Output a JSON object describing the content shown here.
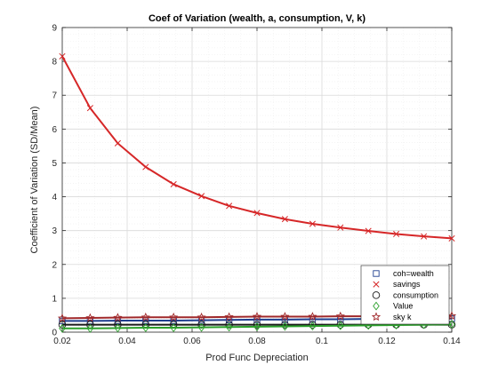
{
  "chart_data": {
    "type": "line",
    "title": "Coef of Variation (wealth, a, consumption, V, k)",
    "xlabel": "Prod Func Depreciation",
    "ylabel": "Coefficient of Variation (SD/Mean)",
    "xlim": [
      0.02,
      0.14
    ],
    "ylim": [
      0,
      9
    ],
    "xticks": [
      0.02,
      0.04,
      0.06,
      0.08,
      0.1,
      0.12,
      0.14
    ],
    "xtick_labels": [
      "0.02",
      "0.04",
      "0.06",
      "0.08",
      "0.1",
      "0.12",
      "0.14"
    ],
    "yticks": [
      0,
      1,
      2,
      3,
      4,
      5,
      6,
      7,
      8,
      9
    ],
    "ytick_labels": [
      "0",
      "1",
      "2",
      "3",
      "4",
      "5",
      "6",
      "7",
      "8",
      "9"
    ],
    "grid": true,
    "legend_position": "bottom-right",
    "x": [
      0.02,
      0.0286,
      0.0371,
      0.0457,
      0.0543,
      0.0629,
      0.0714,
      0.08,
      0.0886,
      0.0971,
      0.1057,
      0.1143,
      0.1229,
      0.1314,
      0.14
    ],
    "series": [
      {
        "name": "coh=wealth",
        "marker": "square",
        "color": "#1f3f8f",
        "values": [
          0.33,
          0.33,
          0.34,
          0.34,
          0.34,
          0.35,
          0.36,
          0.37,
          0.37,
          0.38,
          0.38,
          0.39,
          0.39,
          0.4,
          0.4
        ]
      },
      {
        "name": "savings",
        "marker": "x",
        "color": "#d62728",
        "values": [
          8.15,
          6.62,
          5.58,
          4.88,
          4.37,
          4.02,
          3.73,
          3.52,
          3.34,
          3.2,
          3.09,
          2.99,
          2.9,
          2.83,
          2.77
        ]
      },
      {
        "name": "consumption",
        "marker": "circle",
        "color": "#1a1a1a",
        "values": [
          0.22,
          0.22,
          0.22,
          0.22,
          0.22,
          0.22,
          0.22,
          0.22,
          0.22,
          0.22,
          0.22,
          0.22,
          0.22,
          0.22,
          0.22
        ]
      },
      {
        "name": "Value",
        "marker": "diamond",
        "color": "#2ca02c",
        "values": [
          0.11,
          0.11,
          0.12,
          0.13,
          0.13,
          0.14,
          0.15,
          0.16,
          0.17,
          0.18,
          0.19,
          0.2,
          0.21,
          0.22,
          0.23
        ]
      },
      {
        "name": "sky k",
        "marker": "star",
        "color": "#a0282a",
        "values": [
          0.41,
          0.42,
          0.43,
          0.44,
          0.44,
          0.44,
          0.45,
          0.46,
          0.46,
          0.46,
          0.47,
          0.47,
          0.48,
          0.48,
          0.48
        ]
      }
    ]
  }
}
